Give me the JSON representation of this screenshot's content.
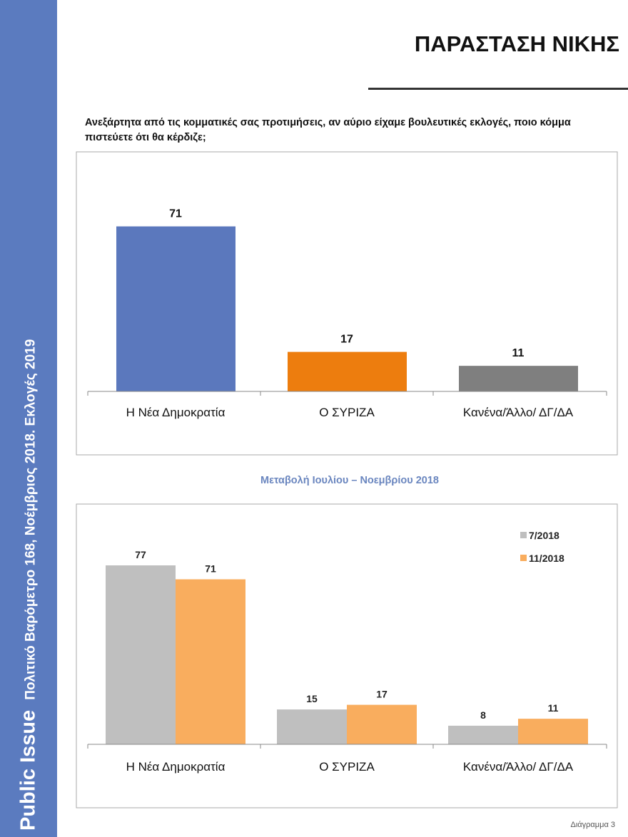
{
  "sidebar": {
    "brand": "Public Issue",
    "subtitle": "Πολιτικό Βαρόμετρο 168, Νοέμβριος 2018. Εκλογές 2019"
  },
  "header": {
    "title": "ΠΑΡΑΣΤΑΣΗ ΝΙΚΗΣ"
  },
  "question": "Ανεξάρτητα από τις κομματικές σας προτιμήσεις, αν αύριο είχαμε βουλευτικές εκλογές, ποιο κόμμα πιστεύετε ότι θα κέρδιζε;",
  "subtitle": "Μεταβολή Ιουλίου – Νοεμβρίου 2018",
  "footer": "Διάγραμμα 3",
  "chart_data": [
    {
      "type": "bar",
      "categories": [
        "Η Νέα Δημοκρατία",
        "Ο ΣΥΡΙΖΑ",
        "Κανένα/Άλλο/ ΔΓ/ΔΑ"
      ],
      "values": [
        71,
        17,
        11
      ],
      "colors": [
        "#5b78bd",
        "#ed7d0e",
        "#7f7f7f"
      ],
      "grid": false
    },
    {
      "type": "bar",
      "categories": [
        "Η Νέα Δημοκρατία",
        "Ο ΣΥΡΙΖΑ",
        "Κανένα/Άλλο/ ΔΓ/ΔΑ"
      ],
      "series": [
        {
          "name": "7/2018",
          "values": [
            77,
            15,
            8
          ],
          "color": "#bfbfbf"
        },
        {
          "name": "11/2018",
          "values": [
            71,
            17,
            11
          ],
          "color": "#f9ad5e"
        }
      ],
      "legend": "top-right",
      "grid": false
    }
  ]
}
